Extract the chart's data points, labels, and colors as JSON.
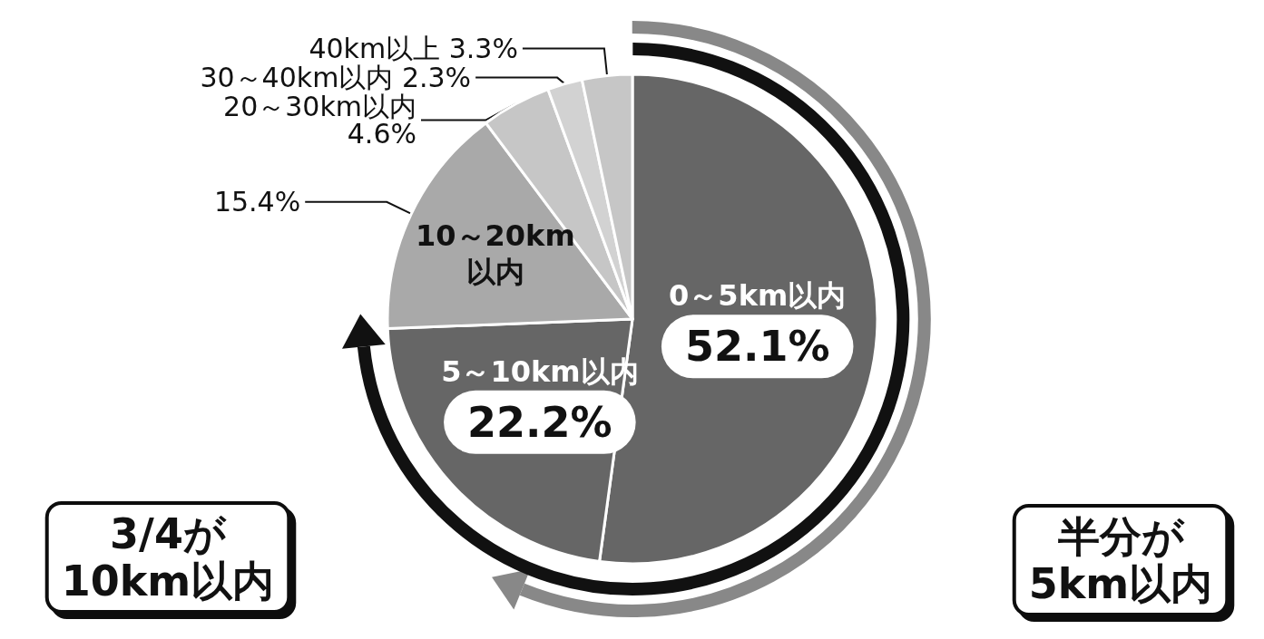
{
  "chart_data": {
    "type": "pie",
    "categories": [
      "0～5km以内",
      "5～10km以内",
      "10～20km以内",
      "20～30km以内",
      "30～40km以内",
      "40km以上"
    ],
    "values": [
      52.1,
      22.2,
      15.4,
      4.6,
      2.3,
      3.3
    ],
    "value_labels": [
      "52.1%",
      "22.2%",
      "15.4%",
      "4.6%",
      "2.3%",
      "3.3%"
    ],
    "colors": [
      "#666666",
      "#666666",
      "#a9a9a9",
      "#c6c6c6",
      "#d2d2d2",
      "#c6c6c6"
    ],
    "legend": false,
    "annotations": [
      "3/4が10km以内",
      "半分が5km以内"
    ]
  }
}
